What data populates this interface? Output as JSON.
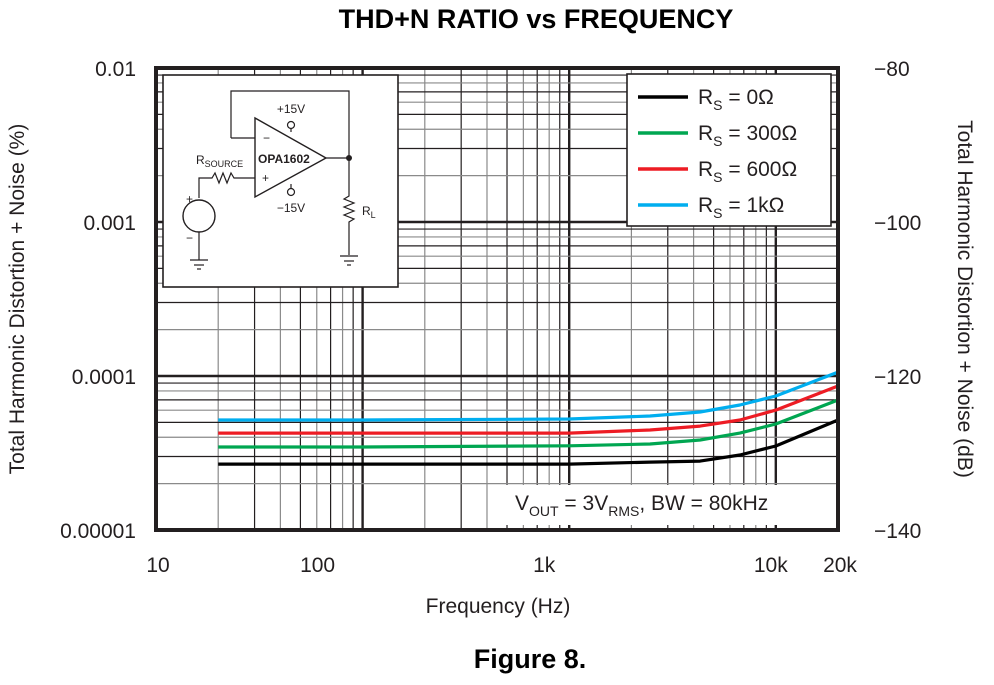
{
  "chart_data": {
    "type": "line",
    "title": "THD+N RATIO vs FREQUENCY",
    "caption": "Figure 8.",
    "xlabel": "Frequency (Hz)",
    "ylabel": "Total Harmonic Distortion + Noise (%)",
    "y2label": "Total Harmonic Distortion + Noise (dB)",
    "xscale": "log",
    "yscale": "log",
    "xlim": [
      10,
      20000
    ],
    "ylim": [
      1e-05,
      0.01
    ],
    "y2lim": [
      -140,
      -80
    ],
    "grid": true,
    "x_ticks": [
      {
        "value": 10,
        "label": "10"
      },
      {
        "value": 100,
        "label": "100"
      },
      {
        "value": 1000,
        "label": "1k"
      },
      {
        "value": 10000,
        "label": "10k"
      },
      {
        "value": 20000,
        "label": "20k"
      }
    ],
    "y_ticks": [
      {
        "value": 0.01,
        "label": "0.01"
      },
      {
        "value": 0.001,
        "label": "0.001"
      },
      {
        "value": 0.0001,
        "label": "0.0001"
      },
      {
        "value": 1e-05,
        "label": "0.00001"
      }
    ],
    "y2_ticks": [
      {
        "value": -80,
        "label": "−80"
      },
      {
        "value": -100,
        "label": "−100"
      },
      {
        "value": -120,
        "label": "−120"
      },
      {
        "value": -140,
        "label": "−140"
      }
    ],
    "legend_position": "top-right",
    "annotation": {
      "main": "V",
      "sub1": "OUT",
      "mid": " = 3V",
      "sub2": "RMS",
      "tail": ", BW = 80kHz"
    },
    "series": [
      {
        "name": "R_S = 0Ω",
        "label_main": "R",
        "label_sub": "S",
        "label_tail": " = 0Ω",
        "color": "#000000",
        "points": [
          [
            20,
            2.68e-05
          ],
          [
            100,
            2.68e-05
          ],
          [
            1000,
            2.68e-05
          ],
          [
            2460,
            2.76e-05
          ],
          [
            4300,
            2.8e-05
          ],
          [
            6700,
            3.07e-05
          ],
          [
            10000,
            3.51e-05
          ],
          [
            20000,
            5.18e-05
          ]
        ]
      },
      {
        "name": "R_S = 300Ω",
        "label_main": "R",
        "label_sub": "S",
        "label_tail": " = 300Ω",
        "color": "#00a651",
        "points": [
          [
            20,
            3.46e-05
          ],
          [
            100,
            3.46e-05
          ],
          [
            1000,
            3.52e-05
          ],
          [
            2460,
            3.62e-05
          ],
          [
            4300,
            3.84e-05
          ],
          [
            6700,
            4.26e-05
          ],
          [
            10000,
            4.88e-05
          ],
          [
            20000,
            6.99e-05
          ]
        ]
      },
      {
        "name": "R_S = 600Ω",
        "label_main": "R",
        "label_sub": "S",
        "label_tail": " = 600Ω",
        "color": "#ed1c24",
        "points": [
          [
            20,
            4.26e-05
          ],
          [
            100,
            4.26e-05
          ],
          [
            1000,
            4.26e-05
          ],
          [
            2460,
            4.46e-05
          ],
          [
            4300,
            4.73e-05
          ],
          [
            6700,
            5.18e-05
          ],
          [
            10000,
            6.01e-05
          ],
          [
            20000,
            8.61e-05
          ]
        ]
      },
      {
        "name": "R_S = 1kΩ",
        "label_main": "R",
        "label_sub": "S",
        "label_tail": " = 1kΩ",
        "color": "#00aeef",
        "points": [
          [
            20,
            5.18e-05
          ],
          [
            100,
            5.18e-05
          ],
          [
            1000,
            5.26e-05
          ],
          [
            2460,
            5.5e-05
          ],
          [
            4300,
            5.84e-05
          ],
          [
            6700,
            6.48e-05
          ],
          [
            10000,
            7.41e-05
          ],
          [
            20000,
            0.000106
          ]
        ]
      }
    ],
    "inset_schematic": {
      "opamp_label": "OPA1602",
      "vplus_label": "+15V",
      "vminus_label": "−15V",
      "rsource_main": "R",
      "rsource_sub": "SOURCE",
      "rl_main": "R",
      "rl_sub": "L",
      "inv_sign": "−",
      "noninv_sign": "+",
      "src_plus": "+",
      "src_minus": "−"
    }
  }
}
